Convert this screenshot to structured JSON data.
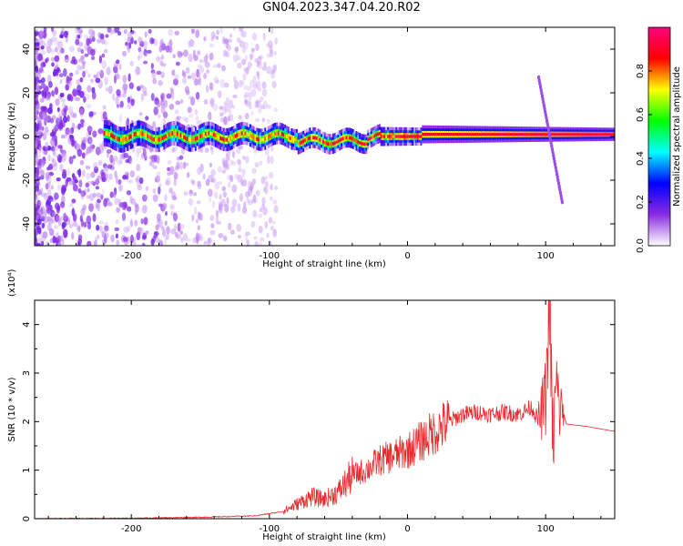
{
  "title": "GN04.2023.347.04.20.R02",
  "colors": {
    "snr_line": "#e8292b",
    "axis": "#000000"
  },
  "chart_data": [
    {
      "type": "heatmap",
      "xlabel": "Height of straight line (km)",
      "ylabel": "Frequency (Hz)",
      "xlim": [
        -270,
        150
      ],
      "ylim": [
        -50,
        50
      ],
      "xticks": [
        -200,
        -100,
        0,
        100
      ],
      "yticks": [
        -40,
        -20,
        0,
        20,
        40
      ],
      "colorbar": {
        "label": "Normalized spectral amplitude",
        "range": [
          0,
          1
        ],
        "ticks": [
          "0.0",
          "0.2",
          "0.4",
          "0.6",
          "0.8"
        ],
        "tick_values": [
          0.0,
          0.2,
          0.4,
          0.6,
          0.8
        ],
        "colormap": [
          "#ffffff",
          "#8a2be2",
          "#0000ff",
          "#00ffff",
          "#00ff00",
          "#ffff00",
          "#ff0000",
          "#ff0080"
        ]
      },
      "features": [
        {
          "name": "noise",
          "x_range": [
            -270,
            -95
          ],
          "y_range": [
            -50,
            50
          ]
        },
        {
          "name": "signal-band",
          "x_range": [
            -220,
            150
          ],
          "center_freq": 0
        },
        {
          "name": "chirp",
          "x_range": [
            95,
            112
          ],
          "freq_from": 27,
          "freq_to": -30
        }
      ]
    },
    {
      "type": "line",
      "xlabel": "Height of straight line (km)",
      "ylabel": "SNR (10 * v/v)",
      "y_scale_label": "(x10⁴)",
      "xlim": [
        -270,
        150
      ],
      "ylim": [
        0,
        4.5
      ],
      "xticks": [
        -200,
        -100,
        0,
        100
      ],
      "yticks": [
        0,
        1,
        2,
        3,
        4
      ],
      "series": [
        {
          "x": [
            -270,
            -200,
            -150,
            -110,
            -90,
            -80,
            -70,
            -60,
            -50,
            -40,
            -30,
            -20,
            -10,
            0,
            10,
            20,
            30,
            40,
            50,
            60,
            70,
            80,
            90,
            95,
            100,
            103,
            105,
            108,
            110,
            112,
            115,
            130,
            150
          ],
          "y": [
            0.0,
            0.01,
            0.03,
            0.06,
            0.15,
            0.3,
            0.45,
            0.4,
            0.55,
            0.9,
            1.0,
            1.2,
            1.3,
            1.4,
            1.6,
            1.8,
            2.0,
            2.15,
            2.2,
            2.15,
            2.2,
            2.15,
            2.3,
            2.0,
            2.5,
            4.5,
            1.5,
            2.8,
            2.2,
            2.3,
            1.95,
            1.9,
            1.8
          ]
        }
      ]
    }
  ]
}
